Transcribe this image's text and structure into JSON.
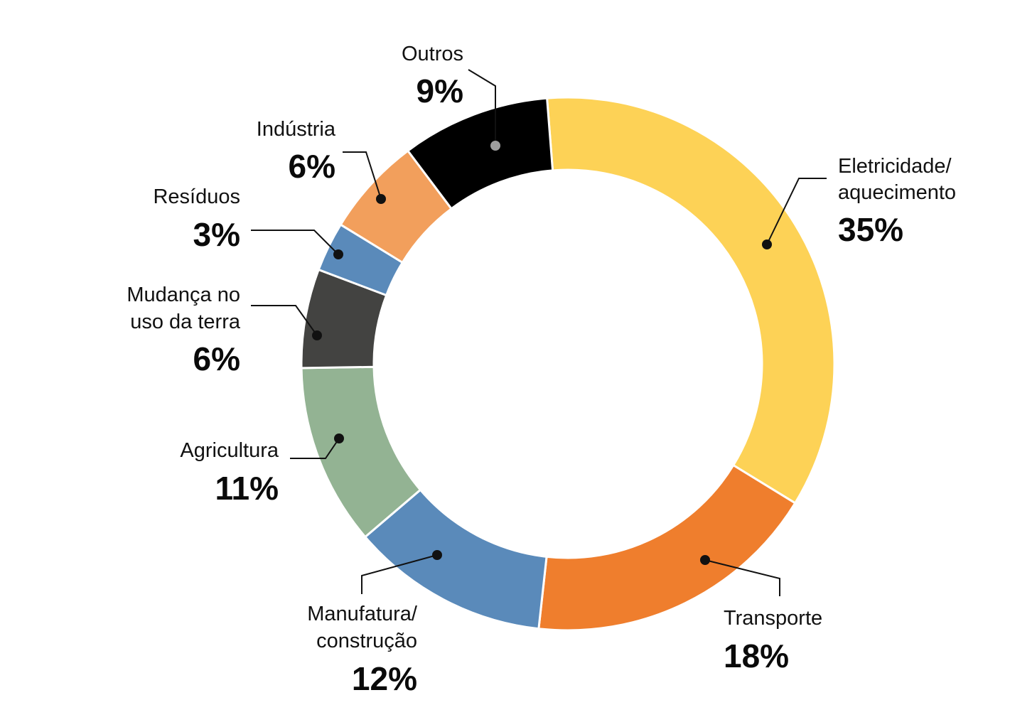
{
  "chart_data": {
    "type": "pie",
    "variant": "donut",
    "title": "",
    "categories": [
      "Eletricidade/ aquecimento",
      "Transporte",
      "Manufatura/ construção",
      "Agricultura",
      "Mudança no uso da terra",
      "Resíduos",
      "Indústria",
      "Outros"
    ],
    "values": [
      35,
      18,
      12,
      11,
      6,
      3,
      6,
      9
    ],
    "unit": "%",
    "slices": [
      {
        "name": "Eletricidade/ aquecimento",
        "label_lines": [
          "Eletricidade/",
          "aquecimento"
        ],
        "value": 35,
        "value_label": "35%",
        "color": "#FDD256"
      },
      {
        "name": "Transporte",
        "label_lines": [
          "Transporte"
        ],
        "value": 18,
        "value_label": "18%",
        "color": "#EF7E2D"
      },
      {
        "name": "Manufatura/ construção",
        "label_lines": [
          "Manufatura/",
          "construção"
        ],
        "value": 12,
        "value_label": "12%",
        "color": "#5A8ABA"
      },
      {
        "name": "Agricultura",
        "label_lines": [
          "Agricultura"
        ],
        "value": 11,
        "value_label": "11%",
        "color": "#93B393"
      },
      {
        "name": "Mudança no uso da terra",
        "label_lines": [
          "Mudança no",
          "uso da terra"
        ],
        "value": 6,
        "value_label": "6%",
        "color": "#434341"
      },
      {
        "name": "Resíduos",
        "label_lines": [
          "Resíduos"
        ],
        "value": 3,
        "value_label": "3%",
        "color": "#5A8ABA"
      },
      {
        "name": "Indústria",
        "label_lines": [
          "Indústria"
        ],
        "value": 6,
        "value_label": "6%",
        "color": "#F29F5C"
      },
      {
        "name": "Outros",
        "label_lines": [
          "Outros"
        ],
        "value": 9,
        "value_label": "9%",
        "color": "#000000",
        "marker_color": "#9E9E9E"
      }
    ]
  }
}
